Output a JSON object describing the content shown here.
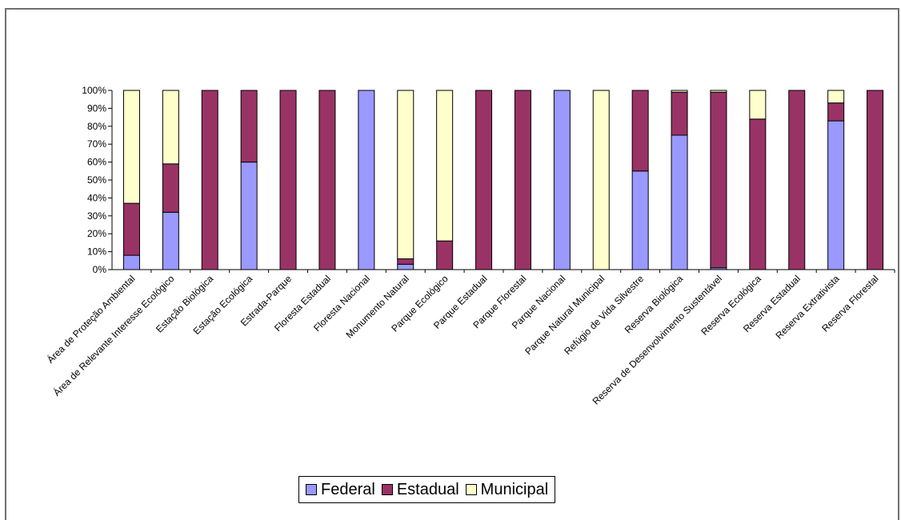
{
  "chart_data": {
    "type": "bar",
    "stacked": true,
    "percent_stacked": true,
    "categories": [
      "Área de Proteção Ambiental",
      "Área de Relevante Interesse Ecológico",
      "Estação Biológica",
      "Estação Ecológica",
      "Estrada-Parque",
      "Floresta Estadual",
      "Floresta Nacional",
      "Monumento Natural",
      "Parque Ecológico",
      "Parque Estadual",
      "Parque Florestal",
      "Parque Nacional",
      "Parque Natural Municipal",
      "Refúgio de Vida Silvestre",
      "Reserva Biológica",
      "Reserva de Desenvolvimento Sustentável",
      "Reserva Ecológica",
      "Reserva Estadual",
      "Reserva Extrativista",
      "Reserva Florestal"
    ],
    "series": [
      {
        "name": "Federal",
        "color": "#9999ff",
        "values": [
          8,
          32,
          0,
          60,
          0,
          0,
          100,
          3,
          0,
          0,
          0,
          100,
          0,
          55,
          75,
          1,
          0,
          0,
          83,
          0
        ]
      },
      {
        "name": "Estadual",
        "color": "#993366",
        "values": [
          29,
          27,
          100,
          40,
          100,
          100,
          0,
          3,
          16,
          100,
          100,
          0,
          0,
          45,
          24,
          98,
          84,
          100,
          10,
          100
        ]
      },
      {
        "name": "Municipal",
        "color": "#ffffcc",
        "values": [
          63,
          41,
          0,
          0,
          0,
          0,
          0,
          94,
          84,
          0,
          0,
          0,
          100,
          0,
          1,
          1,
          16,
          0,
          7,
          0
        ]
      }
    ],
    "y_ticks": [
      "0%",
      "10%",
      "20%",
      "30%",
      "40%",
      "50%",
      "60%",
      "70%",
      "80%",
      "90%",
      "100%"
    ],
    "ylim": [
      0,
      100
    ],
    "grid": false,
    "legend_position": "bottom"
  }
}
